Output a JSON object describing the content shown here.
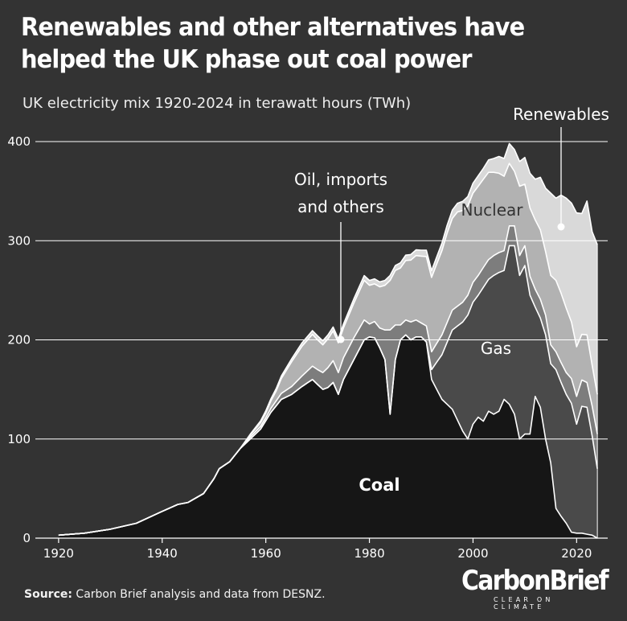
{
  "header": {
    "title": "Renewables and other alternatives have helped the UK phase out coal power",
    "subtitle": "UK electricity mix 1920-2024 in terawatt hours (TWh)"
  },
  "footer": {
    "source_label": "Source:",
    "source_text": "Carbon Brief analysis and data from DESNZ.",
    "logo_main": "CarbonBrief",
    "logo_sub": "CLEAR ON CLIMATE"
  },
  "colors": {
    "background": "#333333",
    "coal": "#161616",
    "gas": "#4a4a4a",
    "oil_imports_others": "#7d7d7d",
    "nuclear": "#b2b2b2",
    "renewables": "#d9d9d9",
    "lines": "#ffffff"
  },
  "chart_data": {
    "type": "area",
    "stacked": true,
    "xlim": [
      1918,
      2026
    ],
    "ylim": [
      0,
      400
    ],
    "x_ticks": [
      "1920",
      "1940",
      "1960",
      "1980",
      "2000",
      "2020"
    ],
    "y_ticks": [
      "0",
      "100",
      "200",
      "300",
      "400"
    ],
    "grid": true,
    "area_labels": {
      "coal": "Coal",
      "gas": "Gas",
      "nuclear": "Nuclear",
      "oil": "Oil, imports and others",
      "renewables": "Renewables"
    },
    "series": [
      {
        "key": "coal",
        "points": [
          [
            1920,
            3
          ],
          [
            1925,
            5
          ],
          [
            1930,
            9
          ],
          [
            1935,
            15
          ],
          [
            1940,
            27
          ],
          [
            1943,
            34
          ],
          [
            1945,
            36
          ],
          [
            1948,
            45
          ],
          [
            1950,
            60
          ],
          [
            1951,
            70
          ],
          [
            1953,
            77
          ],
          [
            1955,
            90
          ],
          [
            1957,
            100
          ],
          [
            1959,
            110
          ],
          [
            1961,
            127
          ],
          [
            1963,
            140
          ],
          [
            1965,
            145
          ],
          [
            1967,
            153
          ],
          [
            1969,
            160
          ],
          [
            1971,
            150
          ],
          [
            1972,
            152
          ],
          [
            1973,
            157
          ],
          [
            1974,
            145
          ],
          [
            1975,
            160
          ],
          [
            1977,
            180
          ],
          [
            1979,
            200
          ],
          [
            1980,
            203
          ],
          [
            1981,
            202
          ],
          [
            1982,
            192
          ],
          [
            1983,
            180
          ],
          [
            1984,
            125
          ],
          [
            1985,
            180
          ],
          [
            1986,
            200
          ],
          [
            1987,
            205
          ],
          [
            1988,
            200
          ],
          [
            1989,
            203
          ],
          [
            1990,
            203
          ],
          [
            1991,
            198
          ],
          [
            1992,
            160
          ],
          [
            1994,
            140
          ],
          [
            1996,
            130
          ],
          [
            1998,
            108
          ],
          [
            1999,
            100
          ],
          [
            2000,
            115
          ],
          [
            2001,
            122
          ],
          [
            2002,
            118
          ],
          [
            2003,
            128
          ],
          [
            2004,
            125
          ],
          [
            2005,
            128
          ],
          [
            2006,
            140
          ],
          [
            2007,
            135
          ],
          [
            2008,
            125
          ],
          [
            2009,
            100
          ],
          [
            2010,
            105
          ],
          [
            2011,
            105
          ],
          [
            2012,
            143
          ],
          [
            2013,
            132
          ],
          [
            2014,
            100
          ],
          [
            2015,
            76
          ],
          [
            2016,
            30
          ],
          [
            2017,
            22
          ],
          [
            2018,
            15
          ],
          [
            2019,
            6
          ],
          [
            2020,
            5
          ],
          [
            2021,
            5
          ],
          [
            2022,
            4
          ],
          [
            2023,
            3
          ],
          [
            2024,
            0
          ]
        ]
      },
      {
        "key": "gas",
        "points": [
          [
            1920,
            0
          ],
          [
            1989,
            0
          ],
          [
            1990,
            0
          ],
          [
            1991,
            0
          ],
          [
            1992,
            10
          ],
          [
            1994,
            45
          ],
          [
            1996,
            80
          ],
          [
            1998,
            110
          ],
          [
            1999,
            125
          ],
          [
            2000,
            123
          ],
          [
            2001,
            123
          ],
          [
            2002,
            135
          ],
          [
            2003,
            133
          ],
          [
            2004,
            140
          ],
          [
            2005,
            140
          ],
          [
            2006,
            130
          ],
          [
            2007,
            160
          ],
          [
            2008,
            170
          ],
          [
            2009,
            165
          ],
          [
            2010,
            170
          ],
          [
            2011,
            140
          ],
          [
            2012,
            90
          ],
          [
            2013,
            90
          ],
          [
            2014,
            105
          ],
          [
            2015,
            100
          ],
          [
            2016,
            140
          ],
          [
            2017,
            135
          ],
          [
            2018,
            130
          ],
          [
            2019,
            130
          ],
          [
            2020,
            110
          ],
          [
            2021,
            128
          ],
          [
            2022,
            128
          ],
          [
            2023,
            100
          ],
          [
            2024,
            70
          ]
        ]
      },
      {
        "key": "oil",
        "points": [
          [
            1920,
            0
          ],
          [
            1955,
            0
          ],
          [
            1957,
            2
          ],
          [
            1960,
            3
          ],
          [
            1962,
            5
          ],
          [
            1965,
            8
          ],
          [
            1968,
            12
          ],
          [
            1970,
            15
          ],
          [
            1971,
            17
          ],
          [
            1972,
            20
          ],
          [
            1973,
            22
          ],
          [
            1974,
            22
          ],
          [
            1975,
            22
          ],
          [
            1977,
            22
          ],
          [
            1979,
            20
          ],
          [
            1980,
            13
          ],
          [
            1982,
            20
          ],
          [
            1983,
            30
          ],
          [
            1984,
            85
          ],
          [
            1985,
            35
          ],
          [
            1986,
            15
          ],
          [
            1987,
            15
          ],
          [
            1988,
            18
          ],
          [
            1989,
            17
          ],
          [
            1990,
            14
          ],
          [
            1991,
            16
          ],
          [
            1992,
            18
          ],
          [
            1994,
            20
          ],
          [
            1996,
            20
          ],
          [
            1998,
            20
          ],
          [
            2000,
            20
          ],
          [
            2002,
            20
          ],
          [
            2004,
            20
          ],
          [
            2006,
            20
          ],
          [
            2008,
            20
          ],
          [
            2010,
            20
          ],
          [
            2012,
            18
          ],
          [
            2014,
            20
          ],
          [
            2016,
            18
          ],
          [
            2018,
            22
          ],
          [
            2020,
            28
          ],
          [
            2022,
            25
          ],
          [
            2024,
            35
          ]
        ]
      },
      {
        "key": "nuclear",
        "points": [
          [
            1920,
            0
          ],
          [
            1955,
            0
          ],
          [
            1957,
            2
          ],
          [
            1960,
            5
          ],
          [
            1962,
            10
          ],
          [
            1965,
            25
          ],
          [
            1967,
            30
          ],
          [
            1969,
            32
          ],
          [
            1971,
            28
          ],
          [
            1973,
            30
          ],
          [
            1975,
            30
          ],
          [
            1977,
            35
          ],
          [
            1979,
            40
          ],
          [
            1981,
            38
          ],
          [
            1983,
            45
          ],
          [
            1985,
            55
          ],
          [
            1987,
            60
          ],
          [
            1989,
            65
          ],
          [
            1991,
            70
          ],
          [
            1993,
            80
          ],
          [
            1995,
            90
          ],
          [
            1997,
            95
          ],
          [
            1999,
            90
          ],
          [
            2001,
            90
          ],
          [
            2003,
            88
          ],
          [
            2005,
            80
          ],
          [
            2006,
            75
          ],
          [
            2007,
            63
          ],
          [
            2008,
            55
          ],
          [
            2009,
            70
          ],
          [
            2010,
            62
          ],
          [
            2011,
            69
          ],
          [
            2012,
            70
          ],
          [
            2013,
            70
          ],
          [
            2014,
            64
          ],
          [
            2015,
            70
          ],
          [
            2016,
            72
          ],
          [
            2017,
            70
          ],
          [
            2018,
            65
          ],
          [
            2019,
            57
          ],
          [
            2020,
            50
          ],
          [
            2021,
            46
          ],
          [
            2022,
            48
          ],
          [
            2023,
            41
          ],
          [
            2024,
            40
          ]
        ]
      },
      {
        "key": "renewables",
        "points": [
          [
            1920,
            0
          ],
          [
            1955,
            0
          ],
          [
            1960,
            2
          ],
          [
            1965,
            3
          ],
          [
            1970,
            4
          ],
          [
            1975,
            4
          ],
          [
            1980,
            5
          ],
          [
            1985,
            5
          ],
          [
            1990,
            6
          ],
          [
            1995,
            8
          ],
          [
            2000,
            10
          ],
          [
            2002,
            11
          ],
          [
            2004,
            14
          ],
          [
            2005,
            17
          ],
          [
            2006,
            18
          ],
          [
            2007,
            20
          ],
          [
            2008,
            22
          ],
          [
            2009,
            25
          ],
          [
            2010,
            27
          ],
          [
            2011,
            35
          ],
          [
            2012,
            41
          ],
          [
            2013,
            53
          ],
          [
            2014,
            64
          ],
          [
            2015,
            83
          ],
          [
            2016,
            83
          ],
          [
            2017,
            99
          ],
          [
            2018,
            111
          ],
          [
            2019,
            120
          ],
          [
            2020,
            135
          ],
          [
            2021,
            122
          ],
          [
            2022,
            135
          ],
          [
            2023,
            135
          ],
          [
            2024,
            151
          ]
        ]
      }
    ]
  }
}
